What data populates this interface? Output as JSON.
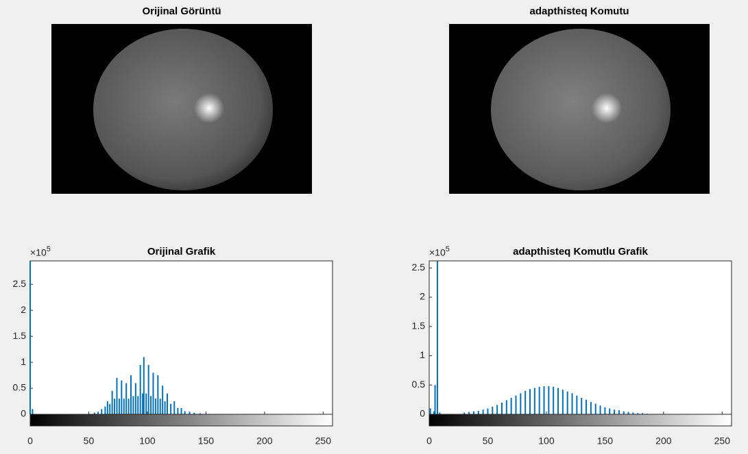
{
  "images": [
    {
      "title": "Orijinal Görüntü"
    },
    {
      "title": "adapthisteq Komutu"
    }
  ],
  "chart_data": [
    {
      "type": "bar",
      "title": "Orijinal Grafik",
      "color": "#0072bd",
      "y_multiplier": "×10",
      "y_multiplier_exponent": "5",
      "xlim": [
        0,
        258
      ],
      "ylim": [
        0,
        2.95
      ],
      "xticks": [
        0,
        50,
        100,
        150,
        200,
        250
      ],
      "yticks": [
        0,
        0.5,
        1,
        1.5,
        2,
        2.5
      ],
      "x": [
        0,
        2,
        55,
        58,
        61,
        64,
        66,
        68,
        70,
        72,
        74,
        76,
        78,
        80,
        82,
        84,
        86,
        88,
        90,
        92,
        94,
        96,
        97,
        99,
        101,
        103,
        105,
        107,
        109,
        111,
        113,
        115,
        117,
        120,
        123,
        126,
        129,
        132,
        136,
        140,
        145,
        150
      ],
      "values": [
        2.95,
        0.1,
        0.03,
        0.05,
        0.1,
        0.15,
        0.25,
        0.2,
        0.45,
        0.3,
        0.7,
        0.3,
        0.65,
        0.3,
        0.6,
        0.3,
        0.75,
        0.35,
        0.6,
        0.35,
        0.95,
        0.4,
        1.1,
        0.4,
        0.95,
        0.35,
        0.8,
        0.3,
        0.75,
        0.3,
        0.55,
        0.25,
        0.4,
        0.2,
        0.25,
        0.12,
        0.12,
        0.06,
        0.05,
        0.03,
        0.02,
        0.01
      ]
    },
    {
      "type": "bar",
      "title": "adapthisteq Komutlu Grafik",
      "color": "#0072bd",
      "y_multiplier": "×10",
      "y_multiplier_exponent": "5",
      "xlim": [
        0,
        258
      ],
      "ylim": [
        0,
        2.62
      ],
      "xticks": [
        0,
        50,
        100,
        150,
        200,
        250
      ],
      "yticks": [
        0,
        0.5,
        1,
        1.5,
        2,
        2.5
      ],
      "x": [
        1,
        4,
        5,
        7,
        9,
        30,
        34,
        38,
        42,
        46,
        50,
        54,
        58,
        62,
        66,
        70,
        74,
        78,
        82,
        86,
        90,
        94,
        98,
        102,
        106,
        110,
        114,
        118,
        122,
        126,
        130,
        134,
        138,
        142,
        146,
        150,
        154,
        158,
        162,
        166,
        170,
        174,
        178,
        182,
        186
      ],
      "values": [
        0.1,
        0.05,
        0.5,
        2.62,
        0.03,
        0.03,
        0.04,
        0.05,
        0.06,
        0.08,
        0.1,
        0.13,
        0.16,
        0.2,
        0.24,
        0.28,
        0.32,
        0.36,
        0.4,
        0.43,
        0.45,
        0.47,
        0.48,
        0.48,
        0.47,
        0.45,
        0.42,
        0.39,
        0.36,
        0.32,
        0.28,
        0.25,
        0.21,
        0.18,
        0.15,
        0.12,
        0.1,
        0.08,
        0.07,
        0.05,
        0.04,
        0.03,
        0.02,
        0.02,
        0.01
      ]
    }
  ]
}
